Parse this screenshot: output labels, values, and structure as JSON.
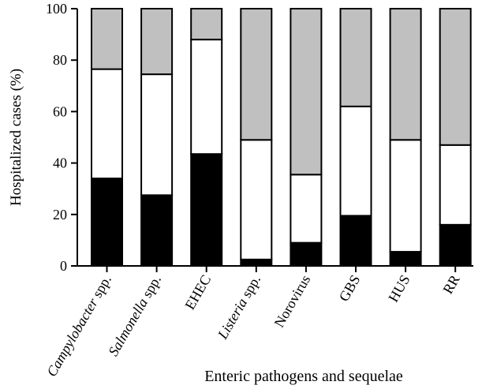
{
  "chart_data": {
    "type": "bar",
    "stacked": true,
    "percent": true,
    "categories": [
      {
        "parts": [
          {
            "text": "Campylobacter",
            "italic": true
          },
          {
            "text": " spp.",
            "italic": false
          }
        ]
      },
      {
        "parts": [
          {
            "text": "Salmonella",
            "italic": true
          },
          {
            "text": " spp.",
            "italic": false
          }
        ]
      },
      {
        "parts": [
          {
            "text": "EHEC",
            "italic": false
          }
        ]
      },
      {
        "parts": [
          {
            "text": "Listeria",
            "italic": true
          },
          {
            "text": " spp.",
            "italic": false
          }
        ]
      },
      {
        "parts": [
          {
            "text": "Norovirus",
            "italic": false
          }
        ]
      },
      {
        "parts": [
          {
            "text": "GBS",
            "italic": false
          }
        ]
      },
      {
        "parts": [
          {
            "text": "HUS",
            "italic": false
          }
        ]
      },
      {
        "parts": [
          {
            "text": "RR",
            "italic": false
          }
        ]
      }
    ],
    "series": [
      {
        "color": "#000000",
        "values": [
          34,
          27.5,
          43.5,
          2.5,
          9,
          19.5,
          5.5,
          16
        ]
      },
      {
        "color": "#ffffff",
        "values": [
          42.5,
          47,
          44.5,
          46.5,
          26.5,
          42.5,
          43.5,
          31
        ]
      },
      {
        "color": "#c0c0c0",
        "values": [
          23.5,
          25.5,
          12,
          51,
          64.5,
          38,
          51,
          53
        ]
      }
    ],
    "xlabel": "Enteric pathogens and sequelae",
    "ylabel": "Hospitalized cases (%)",
    "ylim": [
      0,
      100
    ],
    "yticks": [
      "0",
      "20",
      "40",
      "60",
      "80",
      "100"
    ],
    "grid": false
  }
}
